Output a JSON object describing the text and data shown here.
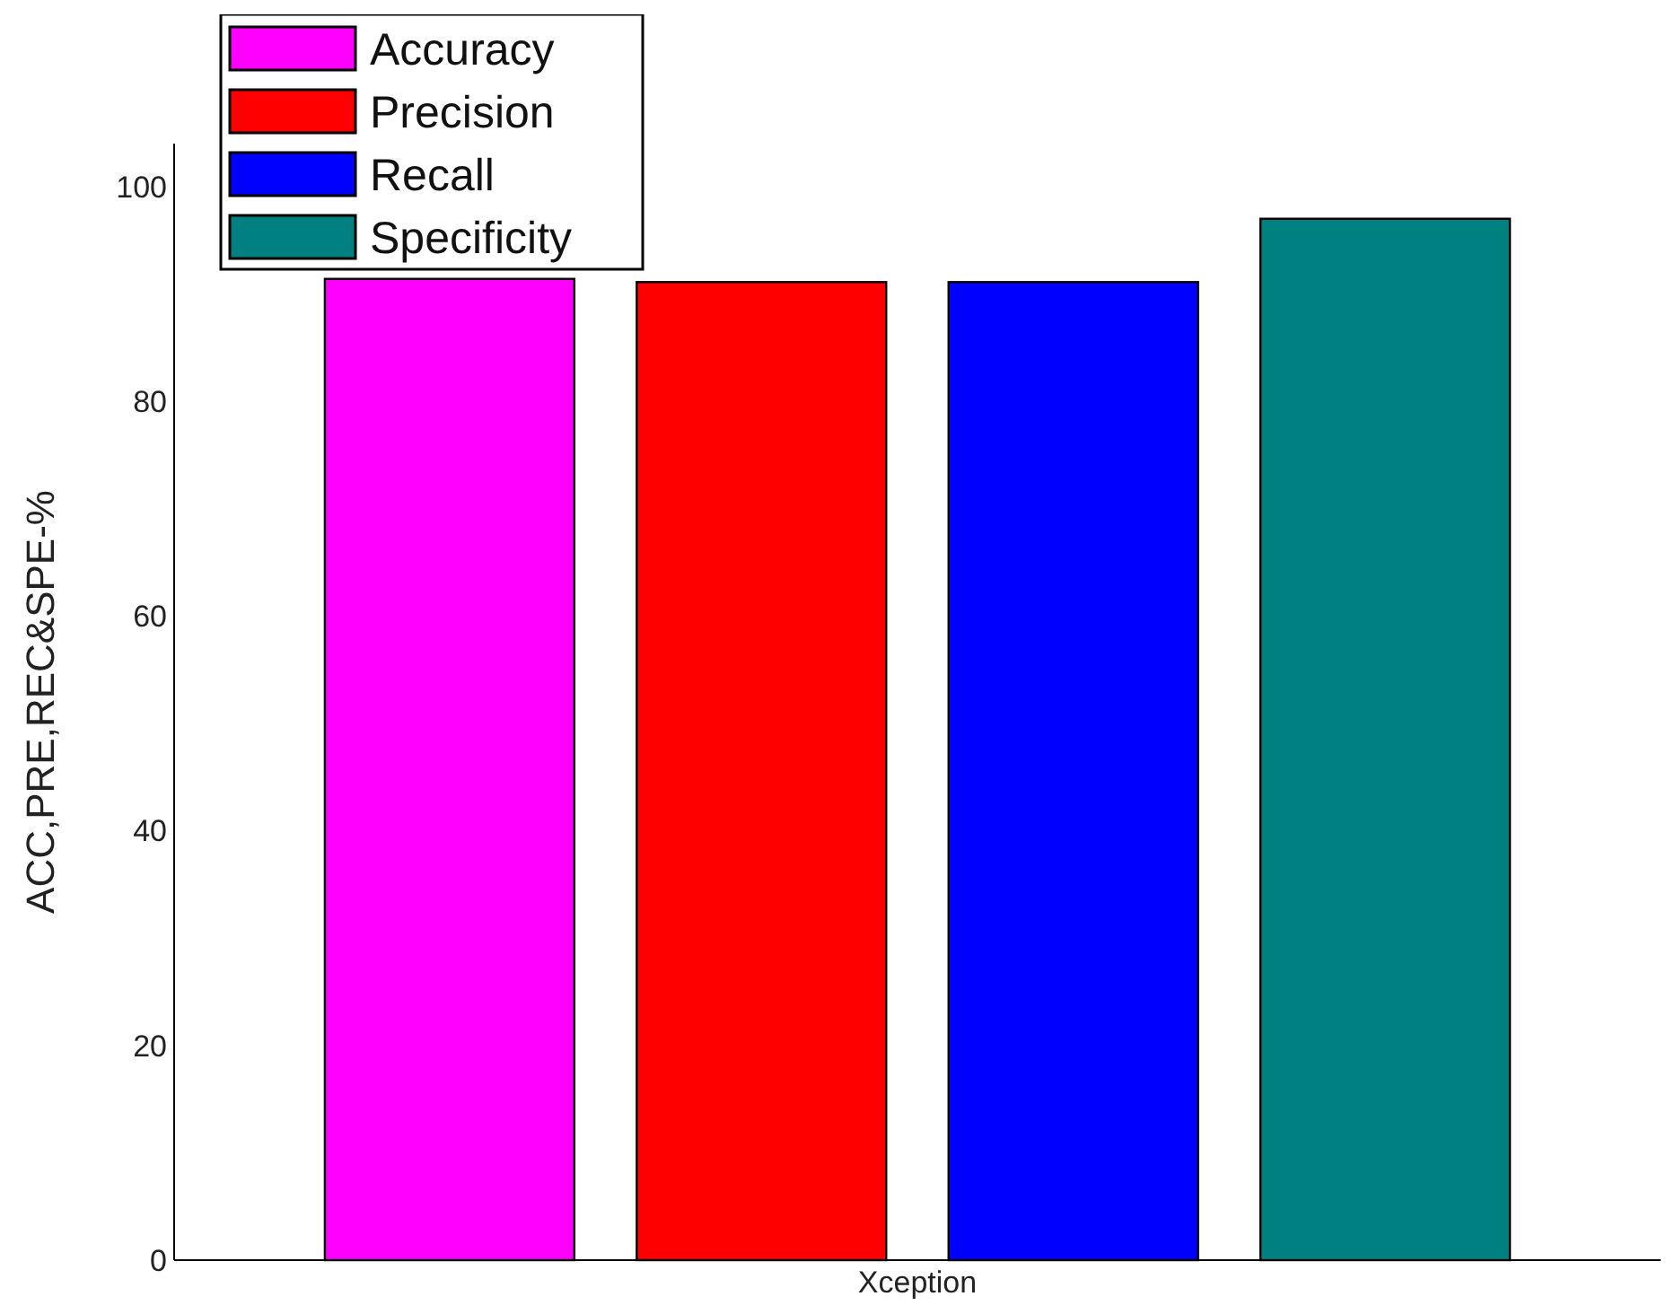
{
  "chart_data": {
    "type": "bar",
    "ylabel": "ACC,PRE,REC&SPE-%",
    "categories": [
      "Xception"
    ],
    "series": [
      {
        "name": "Accuracy",
        "color": "#ff00ff",
        "values": [
          91.4
        ]
      },
      {
        "name": "Precision",
        "color": "#ff0000",
        "values": [
          91.1
        ]
      },
      {
        "name": "Recall",
        "color": "#0000ff",
        "values": [
          91.1
        ]
      },
      {
        "name": "Specificity",
        "color": "#008080",
        "values": [
          97.0
        ]
      }
    ],
    "ylim": [
      0,
      104
    ],
    "yticks": [
      0,
      20,
      40,
      60,
      80,
      100
    ],
    "grid": false,
    "legend": "top left"
  }
}
